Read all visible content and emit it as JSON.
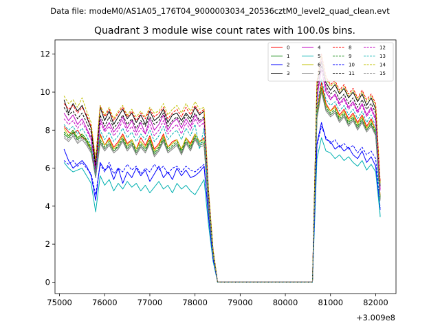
{
  "chart_data": {
    "type": "line",
    "suptitle": "Data file: modeM0/AS1A05_176T04_9000003034_20536cztM0_level2_quad_clean.evt",
    "title": "Quadrant 3 module wise count rates with 100.0s bins.",
    "xlabel": "",
    "ylabel": "",
    "x_offset_label": "+3.009e8",
    "xlim": [
      74900,
      82450
    ],
    "ylim": [
      -0.6,
      12.75
    ],
    "xticks": [
      75000,
      76000,
      77000,
      78000,
      79000,
      80000,
      81000,
      82000
    ],
    "yticks": [
      0,
      2,
      4,
      6,
      8,
      10,
      12
    ],
    "legend_position": "top-right",
    "x": [
      75100,
      75200,
      75300,
      75400,
      75500,
      75600,
      75700,
      75800,
      75900,
      76000,
      76100,
      76200,
      76300,
      76400,
      76500,
      76600,
      76700,
      76800,
      76900,
      77000,
      77100,
      77200,
      77300,
      77400,
      77500,
      77600,
      77700,
      77800,
      77900,
      78000,
      78100,
      78200,
      78300,
      78400,
      78500,
      79000,
      79500,
      80000,
      80500,
      80600,
      80700,
      80800,
      80900,
      81000,
      81100,
      81200,
      81300,
      81400,
      81500,
      81600,
      81700,
      81800,
      81900,
      82000,
      82100
    ],
    "series": [
      {
        "name": "0",
        "color": "#ff0000",
        "dash": false,
        "values": [
          8.2,
          7.9,
          7.8,
          8.0,
          7.6,
          7.5,
          7.0,
          5.8,
          7.8,
          7.2,
          7.6,
          7.1,
          7.4,
          7.8,
          7.3,
          7.5,
          7.0,
          7.6,
          7.2,
          7.7,
          7.0,
          7.3,
          7.8,
          7.1,
          7.4,
          7.5,
          7.0,
          7.6,
          7.3,
          7.8,
          7.4,
          7.6,
          4.0,
          1.5,
          0,
          0,
          0,
          0,
          0,
          0,
          9.0,
          10.5,
          9.4,
          9.0,
          9.3,
          8.8,
          9.1,
          8.6,
          8.9,
          8.4,
          8.8,
          8.2,
          8.6,
          8.0,
          4.5
        ]
      },
      {
        "name": "1",
        "color": "#008000",
        "dash": false,
        "values": [
          7.8,
          7.6,
          7.9,
          7.5,
          7.7,
          7.4,
          6.9,
          5.6,
          7.4,
          7.0,
          7.3,
          6.9,
          7.1,
          7.5,
          7.0,
          7.3,
          6.8,
          7.2,
          6.9,
          7.4,
          6.7,
          7.0,
          7.5,
          6.9,
          7.1,
          7.3,
          6.8,
          7.4,
          7.0,
          7.6,
          7.2,
          7.3,
          3.9,
          1.4,
          0,
          0,
          0,
          0,
          0,
          0,
          8.7,
          10.1,
          9.1,
          8.8,
          9.0,
          8.5,
          8.8,
          8.3,
          8.6,
          8.1,
          8.5,
          8.0,
          8.3,
          7.8,
          4.4
        ]
      },
      {
        "name": "2",
        "color": "#0000ff",
        "dash": false,
        "values": [
          7.0,
          6.4,
          6.0,
          6.2,
          6.4,
          6.1,
          5.6,
          4.3,
          6.3,
          5.9,
          6.1,
          5.4,
          6.0,
          5.2,
          5.8,
          5.5,
          6.0,
          5.6,
          5.9,
          5.3,
          5.7,
          6.1,
          5.5,
          5.8,
          5.4,
          6.0,
          5.6,
          5.9,
          5.5,
          5.6,
          5.8,
          6.1,
          3.4,
          1.2,
          0,
          0,
          0,
          0,
          0,
          0,
          7.3,
          8.4,
          7.5,
          7.4,
          7.0,
          7.2,
          6.9,
          7.1,
          6.7,
          6.5,
          6.9,
          6.3,
          6.6,
          6.1,
          3.8
        ]
      },
      {
        "name": "3",
        "color": "#000000",
        "dash": false,
        "values": [
          9.6,
          8.9,
          9.4,
          9.0,
          9.3,
          8.7,
          8.1,
          6.2,
          9.2,
          8.5,
          9.0,
          8.3,
          8.7,
          9.1,
          8.6,
          8.9,
          8.4,
          8.8,
          8.3,
          9.0,
          8.5,
          8.7,
          9.1,
          8.4,
          8.8,
          8.9,
          8.5,
          8.9,
          8.6,
          9.2,
          8.8,
          9.0,
          4.7,
          1.7,
          0,
          0,
          0,
          0,
          0,
          0,
          10.4,
          11.6,
          10.5,
          10.1,
          10.4,
          9.9,
          10.2,
          9.7,
          10.0,
          9.5,
          9.9,
          9.3,
          9.7,
          9.1,
          5.2
        ]
      },
      {
        "name": "4",
        "color": "#c000c0",
        "dash": false,
        "values": [
          8.9,
          8.5,
          8.8,
          8.3,
          8.6,
          8.1,
          7.6,
          5.9,
          8.6,
          8.0,
          8.4,
          7.9,
          8.2,
          8.7,
          8.1,
          8.5,
          7.9,
          8.4,
          7.8,
          8.6,
          8.0,
          8.3,
          8.8,
          8.0,
          8.4,
          8.6,
          8.1,
          8.6,
          8.2,
          8.8,
          8.4,
          8.6,
          4.5,
          1.6,
          0,
          0,
          0,
          0,
          0,
          0,
          9.7,
          11.2,
          10.0,
          9.6,
          9.9,
          9.4,
          9.7,
          9.2,
          9.5,
          9.0,
          9.4,
          8.8,
          9.2,
          8.6,
          4.9
        ]
      },
      {
        "name": "5",
        "color": "#00b0b0",
        "dash": false,
        "values": [
          6.3,
          6.0,
          5.8,
          5.9,
          6.0,
          5.6,
          5.2,
          3.7,
          5.6,
          5.1,
          5.4,
          4.8,
          5.2,
          4.9,
          5.3,
          5.0,
          5.2,
          4.8,
          5.1,
          4.7,
          5.0,
          5.3,
          4.9,
          5.1,
          4.7,
          5.2,
          4.9,
          5.1,
          4.8,
          4.6,
          5.0,
          5.4,
          3.0,
          1.1,
          0,
          0,
          0,
          0,
          0,
          0,
          6.5,
          7.6,
          6.9,
          6.8,
          6.5,
          6.7,
          6.4,
          6.6,
          6.3,
          6.1,
          6.4,
          5.9,
          6.2,
          5.8,
          3.5
        ]
      },
      {
        "name": "6",
        "color": "#c0c000",
        "dash": false,
        "values": [
          8.1,
          7.7,
          8.0,
          7.6,
          7.8,
          7.5,
          7.0,
          5.7,
          7.7,
          7.2,
          7.5,
          7.0,
          7.3,
          7.7,
          7.2,
          7.5,
          7.0,
          7.4,
          7.1,
          7.6,
          6.9,
          7.2,
          7.7,
          7.1,
          7.3,
          7.5,
          7.0,
          7.6,
          7.2,
          7.8,
          7.4,
          7.5,
          4.0,
          1.5,
          0,
          0,
          0,
          0,
          0,
          0,
          8.9,
          10.3,
          9.3,
          9.0,
          9.2,
          8.7,
          9.0,
          8.5,
          8.8,
          8.3,
          8.7,
          8.1,
          8.5,
          8.0,
          4.5
        ]
      },
      {
        "name": "7",
        "color": "#808080",
        "dash": false,
        "values": [
          7.6,
          7.4,
          7.7,
          7.3,
          7.5,
          7.2,
          6.8,
          5.5,
          7.3,
          6.9,
          7.2,
          6.8,
          7.0,
          7.4,
          6.9,
          7.2,
          6.7,
          7.1,
          6.8,
          7.3,
          6.6,
          6.9,
          7.4,
          6.8,
          7.0,
          7.2,
          6.7,
          7.3,
          6.9,
          7.5,
          7.1,
          7.2,
          3.8,
          1.4,
          0,
          0,
          0,
          0,
          0,
          0,
          8.6,
          10.0,
          9.0,
          8.7,
          8.9,
          8.4,
          8.7,
          8.2,
          8.5,
          8.0,
          8.4,
          7.9,
          8.2,
          7.7,
          4.3
        ]
      },
      {
        "name": "8",
        "color": "#ff0000",
        "dash": true,
        "values": [
          9.4,
          9.1,
          9.3,
          8.9,
          9.2,
          8.8,
          8.2,
          6.5,
          9.3,
          8.7,
          9.1,
          8.5,
          8.9,
          9.2,
          8.7,
          9.0,
          8.5,
          8.9,
          8.6,
          9.1,
          8.7,
          8.9,
          9.2,
          8.6,
          8.9,
          9.1,
          8.7,
          9.2,
          8.8,
          9.3,
          8.9,
          9.1,
          4.8,
          1.7,
          0,
          0,
          0,
          0,
          0,
          0,
          10.6,
          12.0,
          10.8,
          10.4,
          10.6,
          10.1,
          10.4,
          9.9,
          10.2,
          9.7,
          10.1,
          9.6,
          9.9,
          9.4,
          5.3
        ]
      },
      {
        "name": "9",
        "color": "#008000",
        "dash": true,
        "values": [
          7.9,
          7.7,
          8.0,
          7.6,
          7.8,
          7.5,
          7.1,
          5.6,
          7.5,
          7.1,
          7.4,
          6.9,
          7.2,
          7.6,
          7.1,
          7.4,
          6.9,
          7.3,
          7.0,
          7.5,
          6.8,
          7.1,
          7.6,
          7.0,
          7.2,
          7.4,
          6.9,
          7.5,
          7.1,
          7.7,
          7.3,
          7.4,
          3.9,
          1.4,
          0,
          0,
          0,
          0,
          0,
          0,
          8.8,
          10.2,
          9.2,
          8.9,
          9.1,
          8.6,
          8.9,
          8.4,
          8.7,
          8.2,
          8.6,
          8.0,
          8.4,
          7.9,
          4.4
        ]
      },
      {
        "name": "10",
        "color": "#0000ff",
        "dash": true,
        "values": [
          6.4,
          6.2,
          6.4,
          6.1,
          6.3,
          6.0,
          5.7,
          4.6,
          6.2,
          5.8,
          6.3,
          5.7,
          6.0,
          5.8,
          6.2,
          5.9,
          6.1,
          5.7,
          6.0,
          5.8,
          6.2,
          5.9,
          6.1,
          5.7,
          6.0,
          6.1,
          5.8,
          6.1,
          5.9,
          5.8,
          6.0,
          6.2,
          3.5,
          1.2,
          0,
          0,
          0,
          0,
          0,
          0,
          7.2,
          8.2,
          7.6,
          7.3,
          7.5,
          7.1,
          7.3,
          7.0,
          7.2,
          6.8,
          7.1,
          6.7,
          6.9,
          6.5,
          3.9
        ]
      },
      {
        "name": "11",
        "color": "#000000",
        "dash": true,
        "values": [
          9.2,
          8.8,
          9.0,
          8.6,
          8.9,
          8.4,
          7.9,
          6.0,
          8.8,
          8.2,
          8.7,
          8.1,
          8.4,
          8.8,
          8.3,
          8.6,
          8.1,
          8.5,
          8.2,
          8.7,
          8.3,
          8.5,
          8.9,
          8.2,
          8.5,
          8.7,
          8.3,
          8.8,
          8.4,
          8.9,
          8.5,
          8.7,
          4.6,
          1.6,
          0,
          0,
          0,
          0,
          0,
          0,
          10.1,
          11.4,
          10.3,
          9.9,
          10.1,
          9.6,
          9.9,
          9.4,
          9.7,
          9.2,
          9.6,
          9.1,
          9.4,
          8.9,
          5.0
        ]
      },
      {
        "name": "12",
        "color": "#c000c0",
        "dash": true,
        "values": [
          8.6,
          8.3,
          8.5,
          8.1,
          8.4,
          8.0,
          7.5,
          5.8,
          8.4,
          7.9,
          8.2,
          7.7,
          8.0,
          8.5,
          7.9,
          8.2,
          7.7,
          8.1,
          7.8,
          8.3,
          7.7,
          8.0,
          8.5,
          7.8,
          8.1,
          8.3,
          7.8,
          8.4,
          8.0,
          8.6,
          8.2,
          8.4,
          4.4,
          1.6,
          0,
          0,
          0,
          0,
          0,
          0,
          9.5,
          11.8,
          10.2,
          9.7,
          9.8,
          9.3,
          9.6,
          9.1,
          9.4,
          8.9,
          9.3,
          8.7,
          9.1,
          8.5,
          4.8
        ]
      },
      {
        "name": "13",
        "color": "#00b0b0",
        "dash": true,
        "values": [
          8.3,
          8.0,
          8.2,
          7.8,
          8.1,
          7.7,
          7.2,
          5.6,
          8.0,
          7.5,
          7.9,
          7.4,
          7.7,
          8.1,
          7.6,
          7.9,
          7.4,
          7.8,
          7.5,
          8.0,
          7.4,
          7.7,
          8.2,
          7.5,
          7.8,
          8.0,
          7.5,
          8.1,
          7.7,
          8.3,
          7.0,
          8.1,
          4.2,
          1.5,
          0,
          0,
          0,
          0,
          0,
          0,
          9.2,
          10.7,
          9.6,
          9.3,
          9.5,
          9.0,
          9.3,
          8.8,
          9.1,
          8.6,
          9.0,
          8.4,
          8.8,
          8.2,
          3.4
        ]
      },
      {
        "name": "14",
        "color": "#c0c000",
        "dash": true,
        "values": [
          9.8,
          9.4,
          9.6,
          9.2,
          9.7,
          9.0,
          8.4,
          6.4,
          9.3,
          8.8,
          9.2,
          8.6,
          9.0,
          9.3,
          8.8,
          9.1,
          8.7,
          9.0,
          8.7,
          9.2,
          8.9,
          9.0,
          9.4,
          8.8,
          9.1,
          9.3,
          8.9,
          9.4,
          9.0,
          9.5,
          9.1,
          9.2,
          4.9,
          1.7,
          0,
          0,
          0,
          0,
          0,
          0,
          10.5,
          11.9,
          10.7,
          10.3,
          10.5,
          10.0,
          10.3,
          9.8,
          10.1,
          9.6,
          10.0,
          9.5,
          9.8,
          9.3,
          5.2
        ]
      },
      {
        "name": "15",
        "color": "#808080",
        "dash": true,
        "values": [
          7.7,
          7.5,
          7.8,
          7.4,
          7.6,
          7.3,
          6.9,
          5.5,
          7.4,
          7.0,
          7.3,
          6.9,
          7.1,
          7.5,
          7.0,
          7.3,
          6.8,
          7.2,
          6.9,
          7.4,
          6.7,
          7.0,
          7.5,
          6.9,
          7.1,
          7.3,
          6.8,
          7.4,
          7.0,
          7.6,
          7.2,
          7.3,
          3.9,
          1.4,
          0,
          0,
          0,
          0,
          0,
          0,
          8.7,
          10.1,
          9.1,
          8.8,
          9.0,
          8.5,
          8.8,
          8.3,
          8.6,
          8.1,
          8.5,
          8.0,
          8.3,
          7.8,
          4.4
        ]
      }
    ]
  }
}
